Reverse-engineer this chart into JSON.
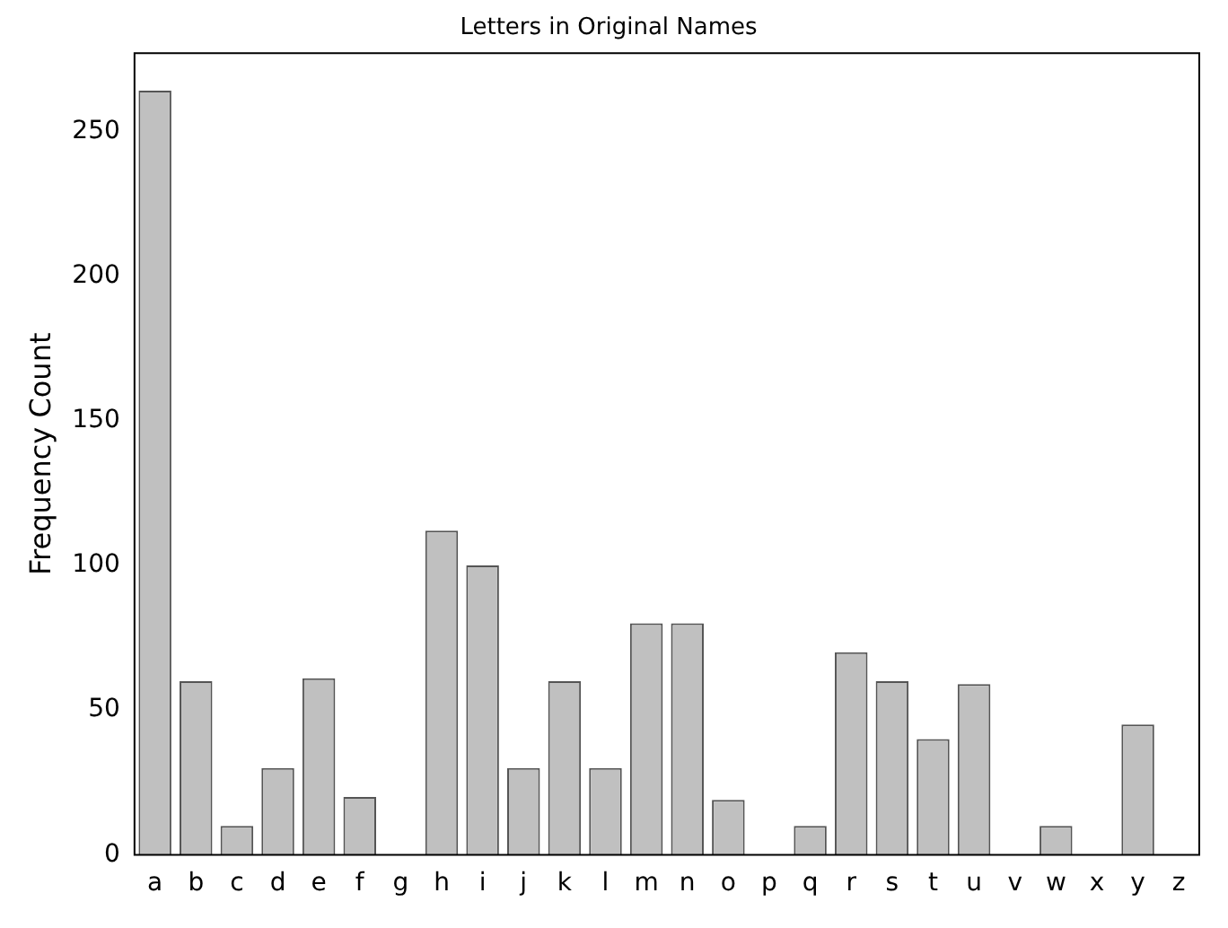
{
  "chart_data": {
    "type": "bar",
    "title": "Letters in Original Names",
    "ylabel": "Frequency Count",
    "categories": [
      "a",
      "b",
      "c",
      "d",
      "e",
      "f",
      "g",
      "h",
      "i",
      "j",
      "k",
      "l",
      "m",
      "n",
      "o",
      "p",
      "q",
      "r",
      "s",
      "t",
      "u",
      "v",
      "w",
      "x",
      "y",
      "z"
    ],
    "values": [
      264,
      60,
      10,
      30,
      61,
      20,
      0,
      112,
      100,
      30,
      60,
      30,
      80,
      80,
      19,
      0,
      10,
      70,
      60,
      40,
      59,
      0,
      10,
      0,
      45,
      0
    ],
    "color": "#c0c0c0",
    "ylim": [
      0,
      277
    ],
    "yticks": [
      0,
      50,
      100,
      150,
      200,
      250
    ],
    "grid": false,
    "legend": false
  }
}
